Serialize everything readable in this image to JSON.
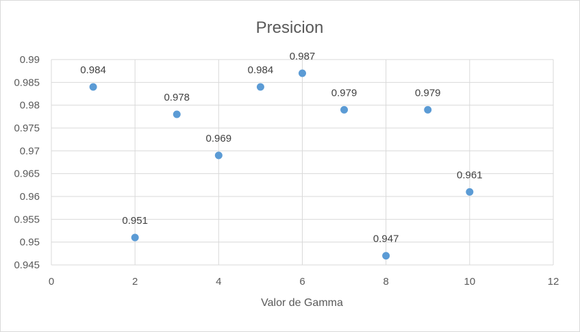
{
  "chart_data": {
    "type": "scatter",
    "title": "Presicion",
    "xlabel": "Valor de Gamma",
    "ylabel": "",
    "xlim": [
      0,
      12
    ],
    "ylim": [
      0.945,
      0.99
    ],
    "x_ticks": [
      0,
      2,
      4,
      6,
      8,
      10,
      12
    ],
    "y_ticks": [
      0.945,
      0.95,
      0.955,
      0.96,
      0.965,
      0.97,
      0.975,
      0.98,
      0.985,
      0.99
    ],
    "grid": true,
    "legend": false,
    "marker_color": "#5b9bd5",
    "series": [
      {
        "x": [
          1,
          2,
          3,
          4,
          5,
          6,
          7,
          8,
          9,
          10
        ],
        "y": [
          0.984,
          0.951,
          0.978,
          0.969,
          0.984,
          0.987,
          0.979,
          0.947,
          0.979,
          0.961
        ],
        "labels": [
          "0.984",
          "0.951",
          "0.978",
          "0.969",
          "0.984",
          "0.987",
          "0.979",
          "0.947",
          "0.979",
          "0.961"
        ]
      }
    ]
  }
}
